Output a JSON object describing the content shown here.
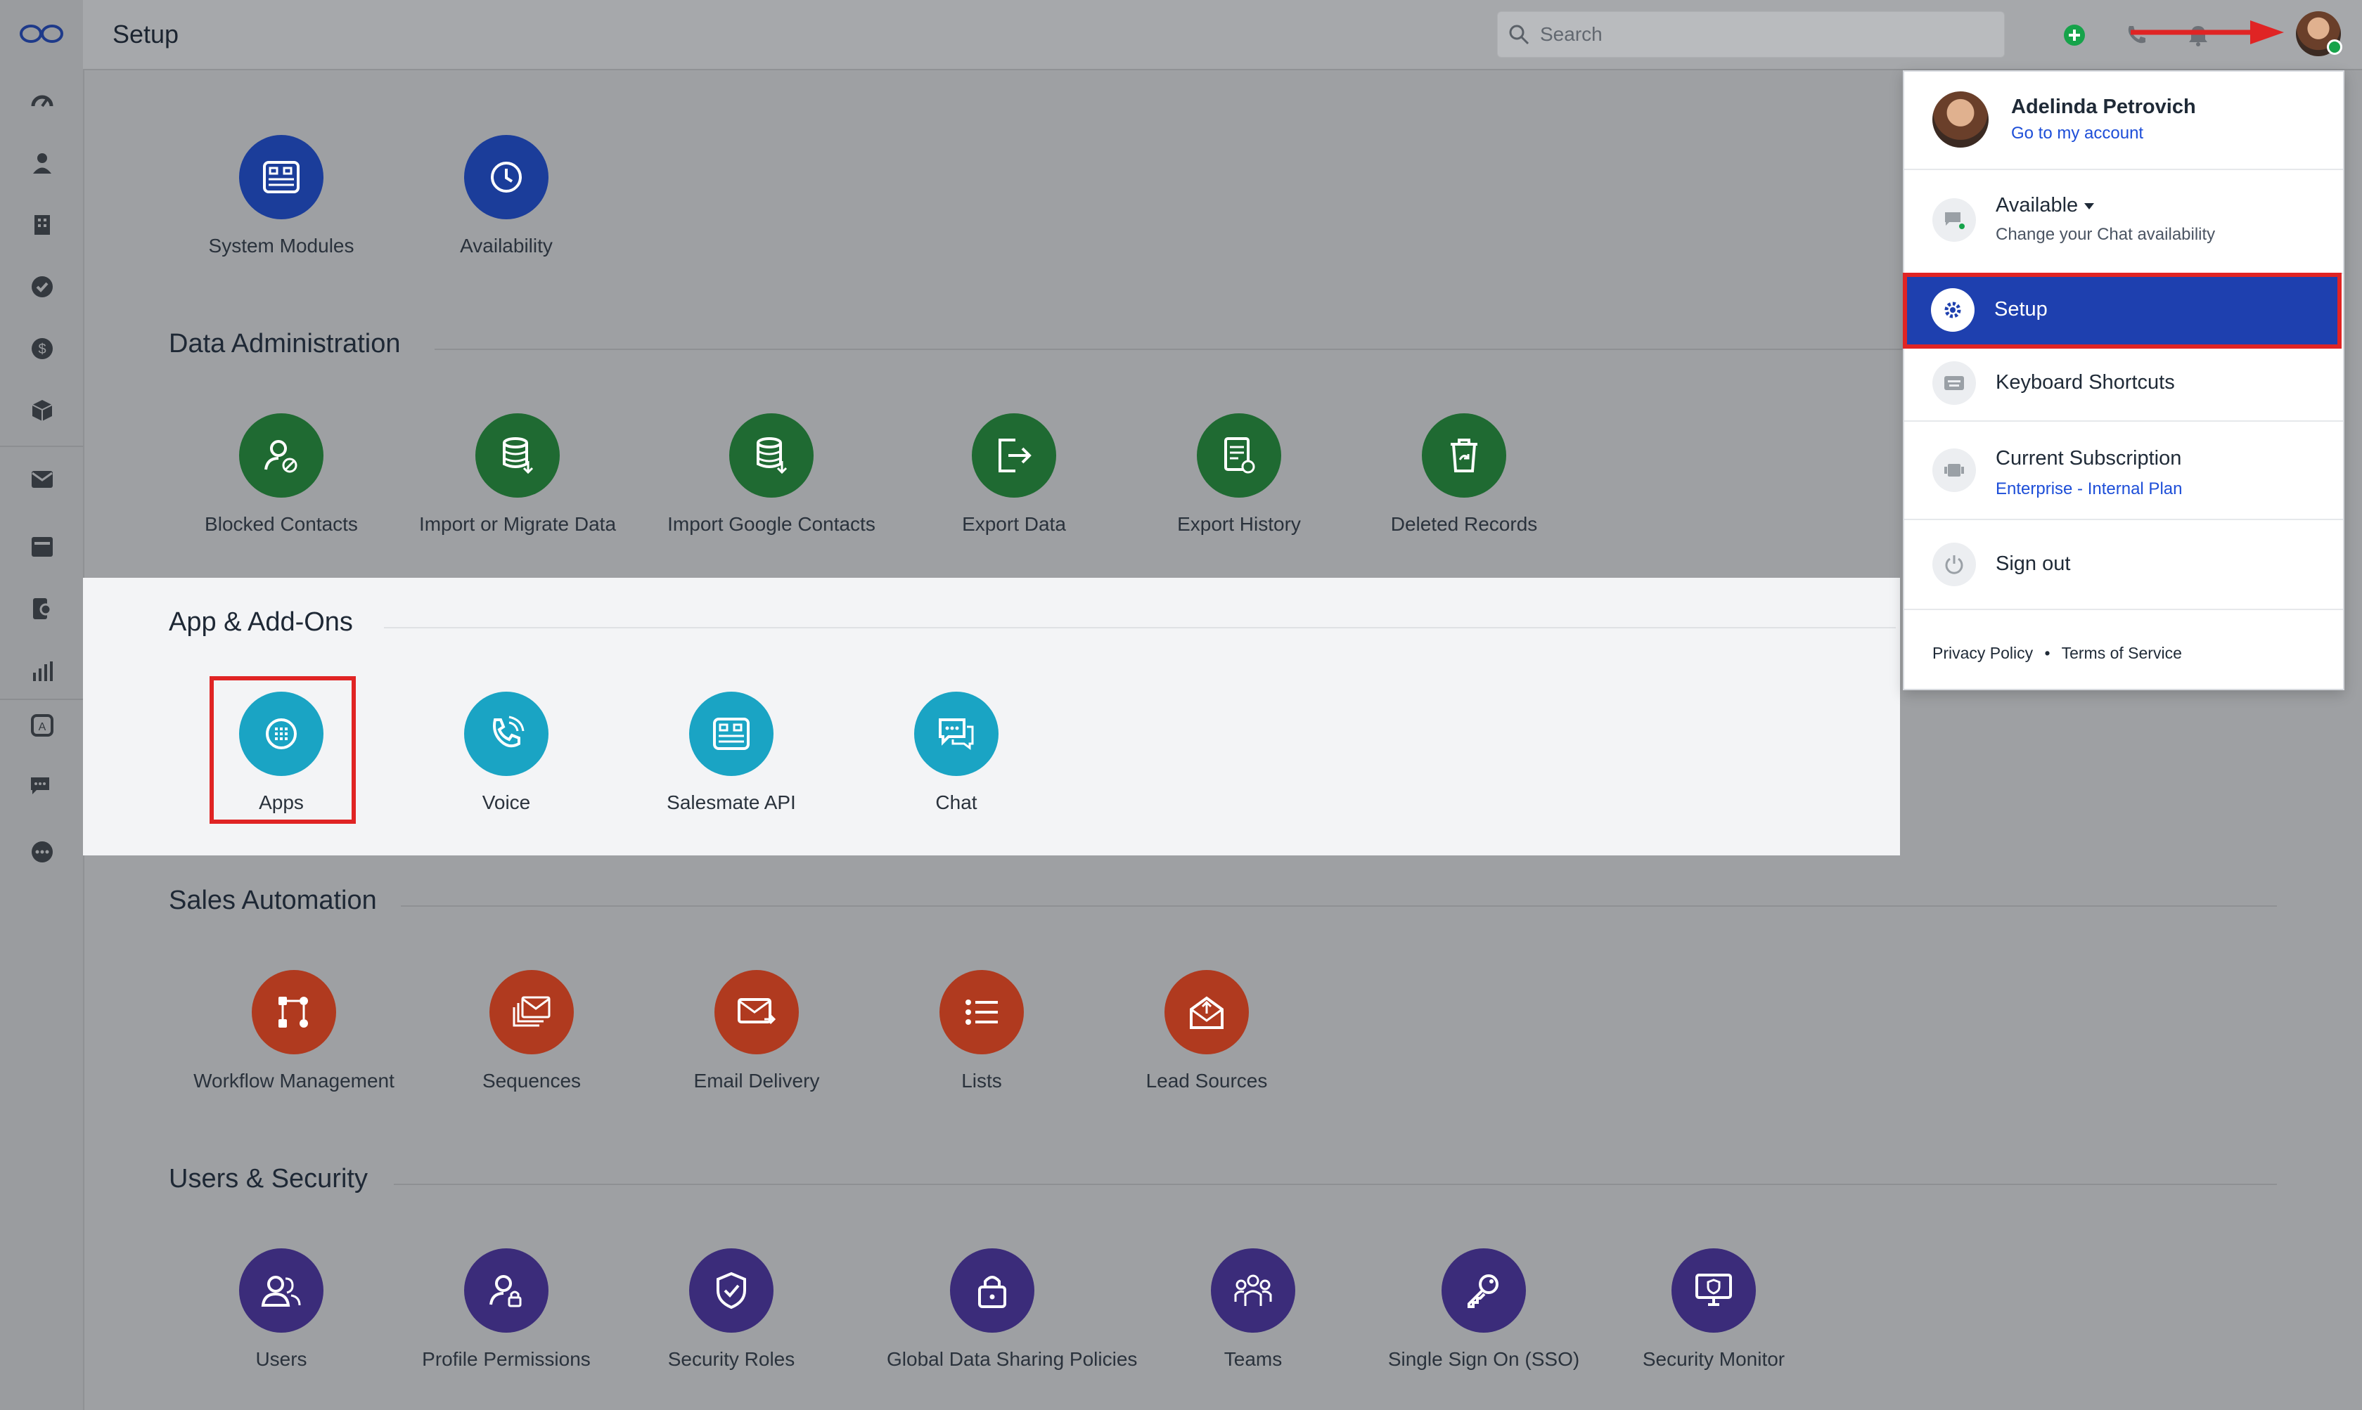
{
  "header": {
    "title": "Setup",
    "search_placeholder": "Search"
  },
  "sections": {
    "general": {
      "items": [
        "System Modules",
        "Availability"
      ]
    },
    "data_admin": {
      "title": "Data Administration",
      "items": [
        "Blocked Contacts",
        "Import or Migrate Data",
        "Import Google Contacts",
        "Export Data",
        "Export History",
        "Deleted Records"
      ]
    },
    "apps": {
      "title": "App & Add-Ons",
      "items": [
        "Apps",
        "Voice",
        "Salesmate API",
        "Chat"
      ]
    },
    "sales": {
      "title": "Sales Automation",
      "items": [
        "Workflow Management",
        "Sequences",
        "Email Delivery",
        "Lists",
        "Lead Sources"
      ]
    },
    "users": {
      "title": "Users & Security",
      "items": [
        "Users",
        "Profile Permissions",
        "Security Roles",
        "Global Data Sharing Policies",
        "Teams",
        "Single Sign On (SSO)",
        "Security Monitor"
      ]
    }
  },
  "dropdown": {
    "user_name": "Adelinda Petrovich",
    "account_link": "Go to my account",
    "status": "Available",
    "status_sub": "Change your Chat availability",
    "setup": "Setup",
    "shortcuts": "Keyboard Shortcuts",
    "subscription": "Current Subscription",
    "plan": "Enterprise - Internal Plan",
    "signout": "Sign out",
    "privacy": "Privacy Policy",
    "separator": "•",
    "terms": "Terms of Service"
  },
  "colors": {
    "blue": "#1b3d9a",
    "green": "#1f6a32",
    "teal": "#1aa4c4",
    "red": "#b03a1f",
    "purple": "#3b2c7a",
    "highlight": "#e02424",
    "online": "#16a34a"
  }
}
